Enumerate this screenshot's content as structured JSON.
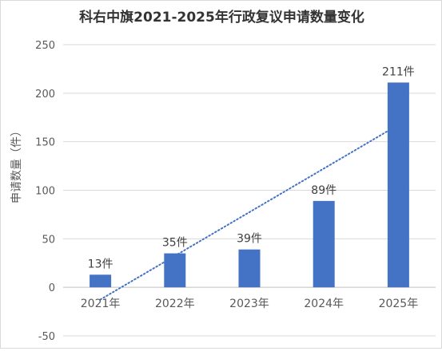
{
  "chart_data": {
    "type": "bar",
    "title": "科右中旗2021-2025年行政复议申请数量变化",
    "xlabel": "",
    "ylabel": "申请数量（件）",
    "categories": [
      "2021年",
      "2022年",
      "2023年",
      "2024年",
      "2025年"
    ],
    "values": [
      13,
      35,
      39,
      89,
      211
    ],
    "data_labels": [
      "13件",
      "35件",
      "39件",
      "89件",
      "211件"
    ],
    "ylim": [
      -50,
      250
    ],
    "yticks": [
      -50,
      0,
      50,
      100,
      150,
      200,
      250
    ],
    "grid": true,
    "legend": "none",
    "trendline": {
      "type": "linear",
      "style": "dotted"
    },
    "colors": {
      "bar": "#4472c4",
      "trend": "#4472c4",
      "grid": "#d9d9d9",
      "text": "#595959"
    }
  }
}
